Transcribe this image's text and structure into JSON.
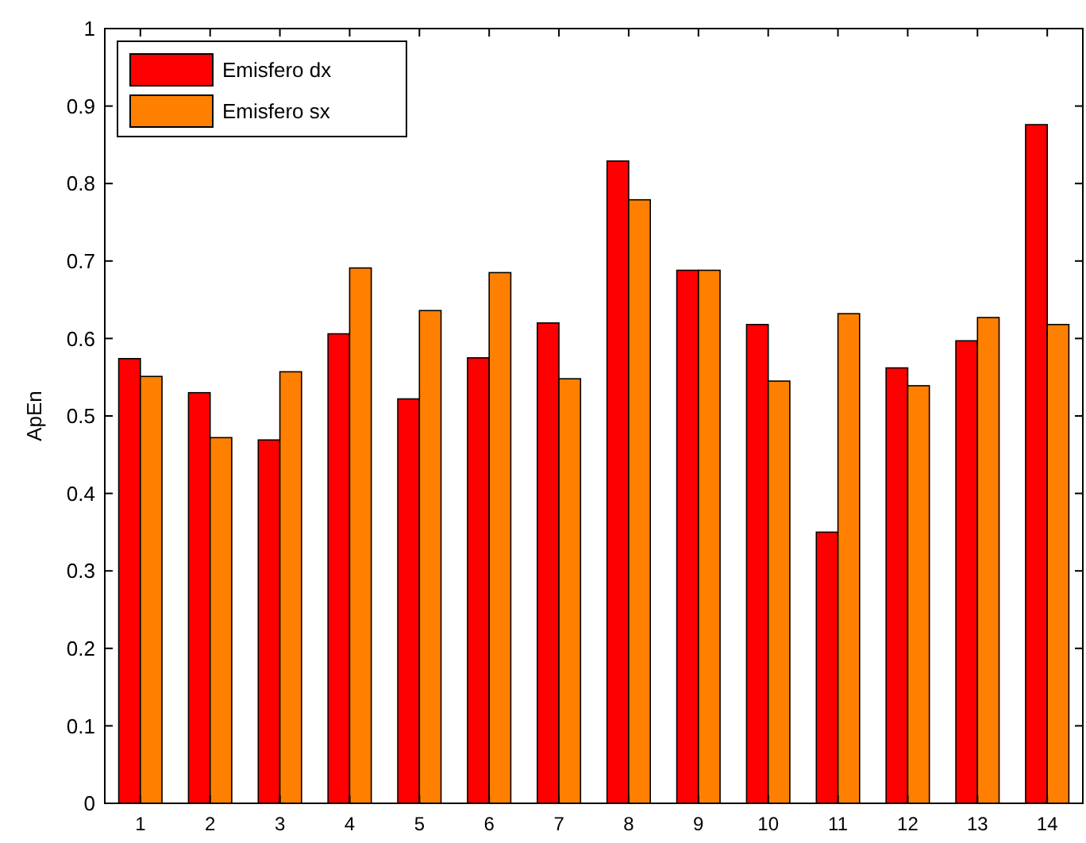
{
  "chart_data": {
    "type": "bar",
    "ylabel": "ApEn",
    "categories": [
      "1",
      "2",
      "3",
      "4",
      "5",
      "6",
      "7",
      "8",
      "9",
      "10",
      "11",
      "12",
      "13",
      "14"
    ],
    "series": [
      {
        "name": "Emisfero dx",
        "color": "#ff0000",
        "values": [
          0.574,
          0.53,
          0.469,
          0.606,
          0.522,
          0.575,
          0.62,
          0.829,
          0.688,
          0.618,
          0.35,
          0.562,
          0.597,
          0.876
        ]
      },
      {
        "name": "Emisfero sx",
        "color": "#ff8000",
        "values": [
          0.551,
          0.472,
          0.557,
          0.691,
          0.636,
          0.685,
          0.548,
          0.779,
          0.688,
          0.545,
          0.632,
          0.539,
          0.627,
          0.618
        ]
      }
    ],
    "ylim": [
      0,
      1
    ],
    "yticks": [
      0,
      0.1,
      0.2,
      0.3,
      0.4,
      0.5,
      0.6,
      0.7,
      0.8,
      0.9,
      1
    ],
    "grid": false,
    "legend": "top left"
  }
}
